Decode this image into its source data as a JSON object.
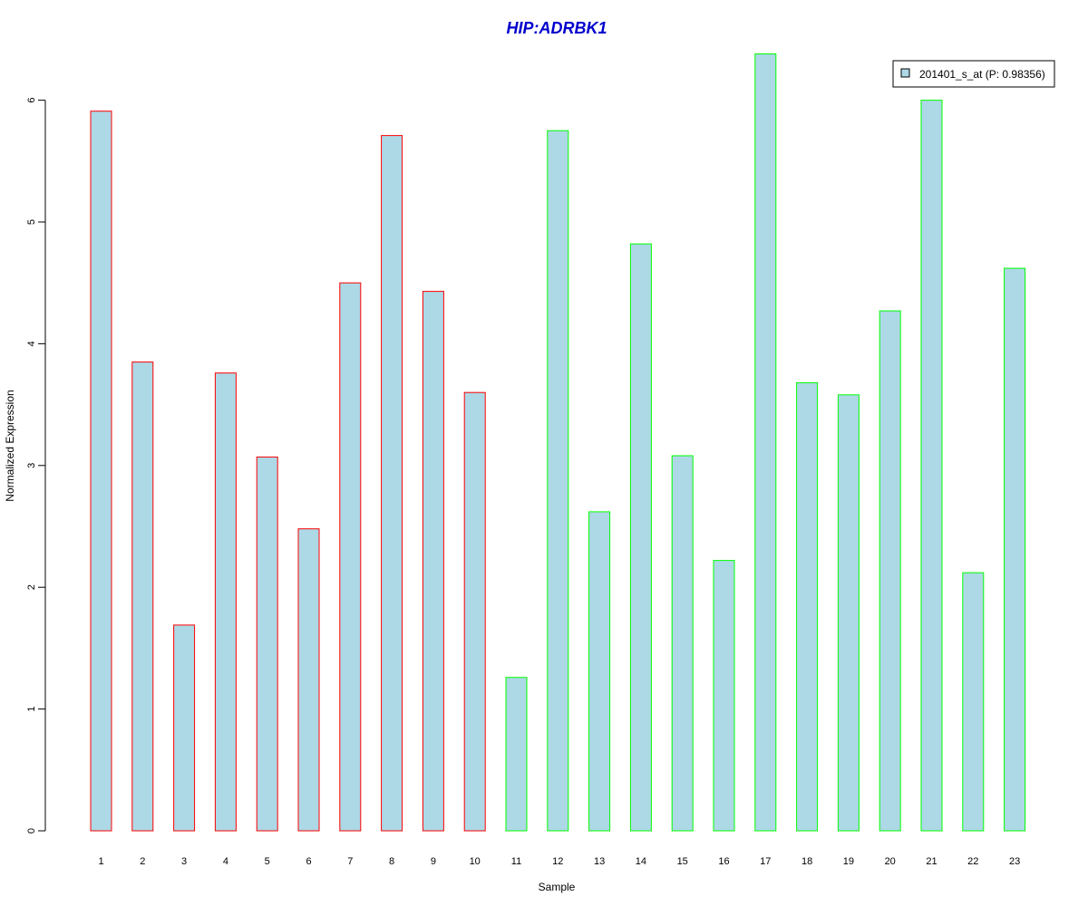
{
  "colors": {
    "bar_fill": "#add8e6",
    "group1_border": "#ff0000",
    "group2_border": "#00ff00",
    "title": "#0000cd"
  },
  "chart_data": {
    "type": "bar",
    "title": "HIP:ADRBK1",
    "xlabel": "Sample",
    "ylabel": "Normalized Expression",
    "ylim": [
      0,
      6.4
    ],
    "yticks": [
      0,
      1,
      2,
      3,
      4,
      5,
      6
    ],
    "grid": false,
    "legend": {
      "placement": "top-right",
      "entries": [
        "201401_s_at (P: 0.98356)"
      ]
    },
    "categories": [
      "1",
      "2",
      "3",
      "4",
      "5",
      "6",
      "7",
      "8",
      "9",
      "10",
      "11",
      "12",
      "13",
      "14",
      "15",
      "16",
      "17",
      "18",
      "19",
      "20",
      "21",
      "22",
      "23"
    ],
    "series": [
      {
        "name": "201401_s_at (P: 0.98356)",
        "values": [
          5.91,
          3.85,
          1.69,
          3.76,
          3.07,
          2.48,
          4.5,
          5.71,
          4.43,
          3.6,
          1.26,
          5.75,
          2.62,
          4.82,
          3.08,
          2.22,
          6.38,
          3.68,
          3.58,
          4.27,
          6.0,
          2.12,
          4.62
        ],
        "group": [
          1,
          1,
          1,
          1,
          1,
          1,
          1,
          1,
          1,
          1,
          2,
          2,
          2,
          2,
          2,
          2,
          2,
          2,
          2,
          2,
          2,
          2,
          2
        ]
      }
    ]
  }
}
